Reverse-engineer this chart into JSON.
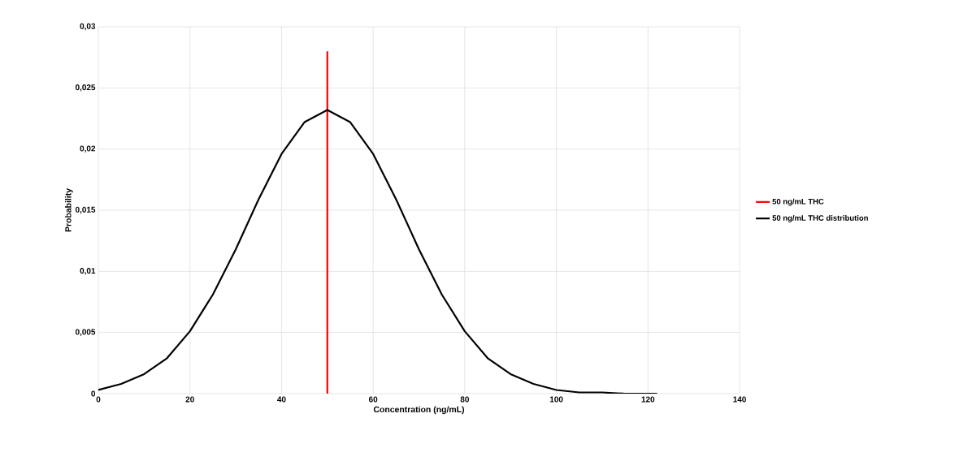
{
  "chart_data": {
    "type": "line",
    "xlabel": "Concentration (ng/mL)",
    "ylabel": "Probability",
    "xlim": [
      0,
      140
    ],
    "xticks": [
      0,
      20,
      40,
      60,
      80,
      100,
      120,
      140
    ],
    "ylim": [
      0,
      0.03
    ],
    "yticks": [
      {
        "value": 0,
        "label": "0"
      },
      {
        "value": 0.005,
        "label": "0,005"
      },
      {
        "value": 0.01,
        "label": "0,01"
      },
      {
        "value": 0.015,
        "label": "0,015"
      },
      {
        "value": 0.02,
        "label": "0,02"
      },
      {
        "value": 0.025,
        "label": "0,025"
      },
      {
        "value": 0.03,
        "label": "0,03"
      }
    ],
    "grid": true,
    "legend": "right",
    "marker": "none",
    "line_style": "solid",
    "series": [
      {
        "name": "50 ng/mL THC",
        "color": "#ff0000",
        "x": [
          50,
          50
        ],
        "values": [
          0,
          0.028
        ]
      },
      {
        "name": "50 ng/mL THC distribution",
        "color": "#000000",
        "x": [
          0,
          5,
          10,
          15,
          20,
          25,
          30,
          35,
          40,
          45,
          50,
          55,
          60,
          65,
          70,
          75,
          80,
          85,
          90,
          95,
          100,
          105,
          110,
          115,
          122
        ],
        "values": [
          0.0003,
          0.0008,
          0.0016,
          0.0029,
          0.0051,
          0.0081,
          0.0118,
          0.0159,
          0.0196,
          0.0222,
          0.0232,
          0.0222,
          0.0196,
          0.0159,
          0.0118,
          0.0081,
          0.0051,
          0.0029,
          0.0016,
          0.0008,
          0.0003,
          0.0001,
          0.0001,
          0,
          0
        ]
      }
    ]
  }
}
